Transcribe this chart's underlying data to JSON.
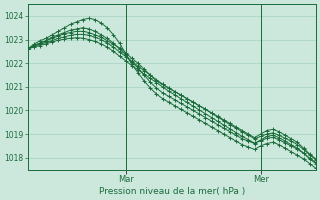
{
  "xlabel": "Pression niveau de la mer( hPa )",
  "bg_color": "#cce8dc",
  "grid_color": "#99ccb8",
  "line_color": "#1a6b3a",
  "ylim": [
    1017.5,
    1024.5
  ],
  "yticks": [
    1018,
    1019,
    1020,
    1021,
    1022,
    1023,
    1024
  ],
  "xlim": [
    0,
    47
  ],
  "vline_positions": [
    16,
    38
  ],
  "vline_labels": [
    "Mar",
    "Mer"
  ],
  "series": [
    [
      1022.6,
      1022.75,
      1022.85,
      1022.95,
      1023.05,
      1023.15,
      1023.25,
      1023.3,
      1023.35,
      1023.35,
      1023.3,
      1023.2,
      1023.1,
      1022.95,
      1022.8,
      1022.65,
      1022.45,
      1022.2,
      1022.0,
      1021.75,
      1021.5,
      1021.25,
      1021.1,
      1020.95,
      1020.8,
      1020.65,
      1020.5,
      1020.35,
      1020.2,
      1020.05,
      1019.9,
      1019.75,
      1019.6,
      1019.45,
      1019.3,
      1019.15,
      1019.0,
      1018.85,
      1019.0,
      1019.15,
      1019.2,
      1019.1,
      1018.95,
      1018.8,
      1018.65,
      1018.4,
      1018.15,
      1017.95
    ],
    [
      1022.6,
      1022.75,
      1022.85,
      1022.95,
      1023.1,
      1023.2,
      1023.3,
      1023.4,
      1023.45,
      1023.5,
      1023.45,
      1023.35,
      1023.2,
      1023.05,
      1022.85,
      1022.6,
      1022.35,
      1022.05,
      1021.8,
      1021.5,
      1021.2,
      1020.95,
      1020.75,
      1020.6,
      1020.45,
      1020.3,
      1020.15,
      1020.0,
      1019.85,
      1019.7,
      1019.55,
      1019.4,
      1019.25,
      1019.1,
      1018.95,
      1018.8,
      1018.7,
      1018.6,
      1018.75,
      1018.9,
      1018.95,
      1018.85,
      1018.7,
      1018.55,
      1018.4,
      1018.2,
      1017.95,
      1017.75
    ],
    [
      1022.6,
      1022.8,
      1022.95,
      1023.05,
      1023.2,
      1023.35,
      1023.5,
      1023.65,
      1023.75,
      1023.85,
      1023.9,
      1023.85,
      1023.7,
      1023.5,
      1023.2,
      1022.85,
      1022.4,
      1021.95,
      1021.6,
      1021.25,
      1020.95,
      1020.7,
      1020.5,
      1020.35,
      1020.2,
      1020.05,
      1019.9,
      1019.75,
      1019.6,
      1019.45,
      1019.3,
      1019.15,
      1019.0,
      1018.85,
      1018.7,
      1018.55,
      1018.45,
      1018.35,
      1018.5,
      1018.6,
      1018.65,
      1018.55,
      1018.4,
      1018.25,
      1018.1,
      1017.95,
      1017.75,
      1017.55
    ],
    [
      1022.6,
      1022.72,
      1022.8,
      1022.88,
      1022.96,
      1023.05,
      1023.12,
      1023.18,
      1023.22,
      1023.22,
      1023.18,
      1023.1,
      1023.0,
      1022.85,
      1022.68,
      1022.48,
      1022.28,
      1022.08,
      1021.88,
      1021.68,
      1021.5,
      1021.3,
      1021.12,
      1020.95,
      1020.8,
      1020.65,
      1020.5,
      1020.35,
      1020.2,
      1020.05,
      1019.88,
      1019.72,
      1019.56,
      1019.4,
      1019.25,
      1019.1,
      1018.95,
      1018.8,
      1018.9,
      1019.0,
      1019.05,
      1018.95,
      1018.82,
      1018.7,
      1018.55,
      1018.35,
      1018.12,
      1017.92
    ],
    [
      1022.6,
      1022.68,
      1022.75,
      1022.82,
      1022.9,
      1022.97,
      1023.02,
      1023.06,
      1023.08,
      1023.06,
      1023.0,
      1022.92,
      1022.82,
      1022.68,
      1022.5,
      1022.3,
      1022.1,
      1021.9,
      1021.72,
      1021.54,
      1021.36,
      1021.18,
      1021.0,
      1020.82,
      1020.66,
      1020.5,
      1020.34,
      1020.18,
      1020.02,
      1019.86,
      1019.7,
      1019.54,
      1019.38,
      1019.22,
      1019.06,
      1018.9,
      1018.76,
      1018.62,
      1018.72,
      1018.82,
      1018.86,
      1018.76,
      1018.62,
      1018.5,
      1018.36,
      1018.18,
      1017.98,
      1017.8
    ]
  ]
}
